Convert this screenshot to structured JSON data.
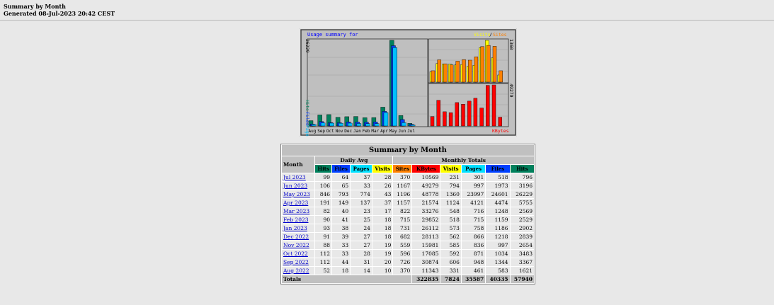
{
  "header": {
    "title": "Summary by Month",
    "generated": "Generated 08-Jul-2023 20:42 CEST"
  },
  "graph": {
    "title": "Usage summary for",
    "legend_visits": "Visits",
    "legend_slash": "/",
    "legend_sites": "Sites",
    "left_max_label": "26229",
    "left_axis_pages": "Pages",
    "left_axis_files": "Files",
    "left_axis_hits": "Hits",
    "right_top_max": "1360",
    "right_bottom_max": "49279",
    "right_bottom_label": "KBytes",
    "colors": {
      "hits": "#00805c",
      "files": "#0040ff",
      "pages": "#00c0ff",
      "visits": "#ffff00",
      "sites": "#ff8000",
      "kbytes": "#ff0000"
    }
  },
  "table": {
    "title": "Summary by Month",
    "month_header": "Month",
    "daily_avg_header": "Daily Avg",
    "monthly_totals_header": "Monthly Totals",
    "daily_cols": [
      "Hits",
      "Files",
      "Pages",
      "Visits"
    ],
    "monthly_cols": [
      "Sites",
      "KBytes",
      "Visits",
      "Pages",
      "Files",
      "Hits"
    ],
    "rows": [
      {
        "month": "Jul 2023",
        "d": [
          "99",
          "64",
          "37",
          "28"
        ],
        "m": [
          "370",
          "10569",
          "231",
          "301",
          "518",
          "796"
        ]
      },
      {
        "month": "Jun 2023",
        "d": [
          "106",
          "65",
          "33",
          "26"
        ],
        "m": [
          "1167",
          "49279",
          "794",
          "997",
          "1973",
          "3196"
        ]
      },
      {
        "month": "May 2023",
        "d": [
          "846",
          "793",
          "774",
          "43"
        ],
        "m": [
          "1196",
          "48778",
          "1360",
          "23997",
          "24601",
          "26229"
        ]
      },
      {
        "month": "Apr 2023",
        "d": [
          "191",
          "149",
          "137",
          "37"
        ],
        "m": [
          "1157",
          "21574",
          "1124",
          "4121",
          "4474",
          "5755"
        ]
      },
      {
        "month": "Mar 2023",
        "d": [
          "82",
          "40",
          "23",
          "17"
        ],
        "m": [
          "822",
          "33276",
          "548",
          "716",
          "1248",
          "2569"
        ]
      },
      {
        "month": "Feb 2023",
        "d": [
          "90",
          "41",
          "25",
          "18"
        ],
        "m": [
          "715",
          "29852",
          "518",
          "715",
          "1159",
          "2529"
        ]
      },
      {
        "month": "Jan 2023",
        "d": [
          "93",
          "38",
          "24",
          "18"
        ],
        "m": [
          "731",
          "26112",
          "573",
          "758",
          "1186",
          "2902"
        ]
      },
      {
        "month": "Dec 2022",
        "d": [
          "91",
          "39",
          "27",
          "18"
        ],
        "m": [
          "682",
          "28113",
          "562",
          "866",
          "1218",
          "2839"
        ]
      },
      {
        "month": "Nov 2022",
        "d": [
          "88",
          "33",
          "27",
          "19"
        ],
        "m": [
          "559",
          "15981",
          "585",
          "836",
          "997",
          "2654"
        ]
      },
      {
        "month": "Oct 2022",
        "d": [
          "112",
          "33",
          "28",
          "19"
        ],
        "m": [
          "596",
          "17085",
          "592",
          "871",
          "1034",
          "3483"
        ]
      },
      {
        "month": "Sep 2022",
        "d": [
          "112",
          "44",
          "31",
          "20"
        ],
        "m": [
          "726",
          "30874",
          "606",
          "948",
          "1344",
          "3367"
        ]
      },
      {
        "month": "Aug 2022",
        "d": [
          "52",
          "18",
          "14",
          "10"
        ],
        "m": [
          "370",
          "11343",
          "331",
          "461",
          "583",
          "1621"
        ]
      }
    ],
    "totals_label": "Totals",
    "totals": [
      "322835",
      "7824",
      "35587",
      "40335",
      "57940"
    ]
  },
  "chart_data": [
    {
      "type": "bar",
      "categories": [
        "Aug",
        "Sep",
        "Oct",
        "Nov",
        "Dec",
        "Jan",
        "Feb",
        "Mar",
        "Apr",
        "May",
        "Jun",
        "Jul"
      ],
      "series": [
        {
          "name": "Hits",
          "values": [
            1621,
            3367,
            3483,
            2654,
            2839,
            2902,
            2529,
            2569,
            5755,
            26229,
            3196,
            796
          ]
        },
        {
          "name": "Files",
          "values": [
            583,
            1344,
            1034,
            997,
            1218,
            1186,
            1159,
            1248,
            4474,
            24601,
            1973,
            518
          ]
        },
        {
          "name": "Pages",
          "values": [
            461,
            948,
            871,
            836,
            866,
            758,
            715,
            716,
            4121,
            23997,
            997,
            301
          ]
        }
      ],
      "ylim": [
        0,
        26229
      ]
    },
    {
      "type": "bar",
      "categories": [
        "Aug",
        "Sep",
        "Oct",
        "Nov",
        "Dec",
        "Jan",
        "Feb",
        "Mar",
        "Apr",
        "May",
        "Jun",
        "Jul"
      ],
      "series": [
        {
          "name": "Visits",
          "values": [
            331,
            606,
            592,
            585,
            562,
            573,
            518,
            548,
            1124,
            1360,
            794,
            231
          ]
        },
        {
          "name": "Sites",
          "values": [
            370,
            726,
            596,
            559,
            682,
            731,
            715,
            822,
            1157,
            1196,
            1167,
            370
          ]
        }
      ],
      "ylim": [
        0,
        1360
      ]
    },
    {
      "type": "bar",
      "categories": [
        "Aug",
        "Sep",
        "Oct",
        "Nov",
        "Dec",
        "Jan",
        "Feb",
        "Mar",
        "Apr",
        "May",
        "Jun",
        "Jul"
      ],
      "series": [
        {
          "name": "KBytes",
          "values": [
            11343,
            30874,
            17085,
            15981,
            28113,
            26112,
            29852,
            33276,
            21574,
            48778,
            49279,
            10569
          ]
        }
      ],
      "ylim": [
        0,
        49279
      ]
    }
  ]
}
